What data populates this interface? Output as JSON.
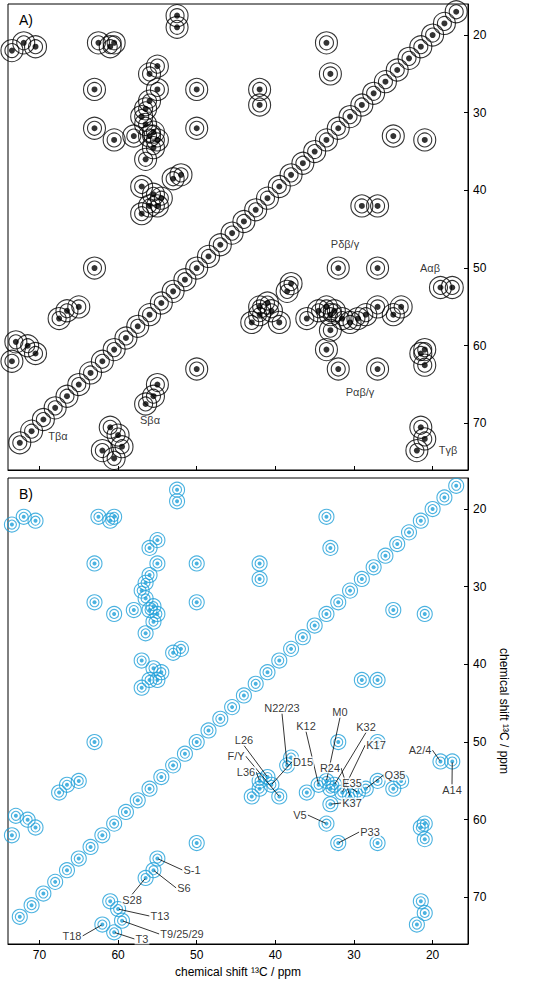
{
  "chart_data": [
    {
      "type": "scatter",
      "title": "A)",
      "xlim": [
        74,
        15.5
      ],
      "ylim": [
        76,
        16
      ],
      "xticks": [
        70,
        60,
        50,
        40,
        30,
        20
      ],
      "yticks": [
        20,
        30,
        40,
        50,
        60,
        70
      ],
      "tick_labels": "y",
      "color": "#000000",
      "values": [
        [
          60,
          71.5
        ],
        [
          71.5,
          60
        ],
        [
          59.5,
          73
        ],
        [
          73,
          59.5
        ],
        [
          62,
          73.5
        ],
        [
          73.5,
          62
        ],
        [
          60.5,
          74.5
        ],
        [
          61,
          70.5
        ],
        [
          70.5,
          61
        ],
        [
          21.5,
          70.5
        ],
        [
          70.5,
          21.5
        ],
        [
          21,
          72
        ],
        [
          72,
          21
        ],
        [
          22,
          73.5
        ],
        [
          73.5,
          22
        ],
        [
          21.5,
          61
        ],
        [
          61,
          21.5
        ],
        [
          21,
          62.5
        ],
        [
          62.5,
          21
        ],
        [
          55,
          65
        ],
        [
          65,
          55
        ],
        [
          55.5,
          66.5
        ],
        [
          66.5,
          55.5
        ],
        [
          56.5,
          67.5
        ],
        [
          67.5,
          56.5
        ],
        [
          19,
          52.5
        ],
        [
          52.5,
          19
        ],
        [
          17.5,
          52.5
        ],
        [
          52.5,
          17.5
        ],
        [
          33,
          56
        ],
        [
          56,
          33
        ],
        [
          32.5,
          55.5
        ],
        [
          55.5,
          32.5
        ],
        [
          34.5,
          55.5
        ],
        [
          55.5,
          34.5
        ],
        [
          31.5,
          56.5
        ],
        [
          56.5,
          31.5
        ],
        [
          33,
          58
        ],
        [
          58,
          33
        ],
        [
          25,
          56
        ],
        [
          56,
          25
        ],
        [
          42,
          56
        ],
        [
          56,
          42
        ],
        [
          25,
          33
        ],
        [
          33,
          25
        ],
        [
          42,
          29
        ],
        [
          29,
          42
        ],
        [
          32,
          63
        ],
        [
          63,
          32
        ],
        [
          27,
          63
        ],
        [
          63,
          27
        ],
        [
          50,
          63
        ],
        [
          63,
          50
        ],
        [
          32,
          50
        ],
        [
          50,
          32
        ],
        [
          27,
          50
        ],
        [
          50,
          27
        ],
        [
          33.5,
          60.5
        ],
        [
          60.5,
          33.5
        ],
        [
          21,
          60.5
        ],
        [
          60.5,
          21
        ],
        [
          21,
          33.5
        ],
        [
          33.5,
          21
        ],
        [
          42,
          55
        ],
        [
          55,
          42
        ],
        [
          41,
          54.5
        ],
        [
          54.5,
          41
        ],
        [
          27,
          55
        ],
        [
          55,
          27
        ],
        [
          24,
          55
        ],
        [
          55,
          24
        ],
        [
          27,
          42
        ],
        [
          42,
          27
        ],
        [
          38.5,
          53
        ],
        [
          53,
          38.5
        ],
        [
          38,
          52
        ],
        [
          52,
          38
        ],
        [
          40.5,
          55.5
        ],
        [
          55.5,
          40.5
        ],
        [
          29.5,
          56.5
        ],
        [
          56.5,
          29.5
        ],
        [
          36,
          56.5
        ],
        [
          56.5,
          36
        ],
        [
          28.5,
          56
        ],
        [
          56,
          28.5
        ],
        [
          30.5,
          57
        ],
        [
          57,
          30.5
        ],
        [
          43,
          57
        ],
        [
          57,
          43
        ],
        [
          33.5,
          55
        ],
        [
          55,
          33.5
        ],
        [
          39.5,
          57
        ],
        [
          57,
          39.5
        ],
        [
          17,
          17
        ],
        [
          18.5,
          18.5
        ],
        [
          20,
          20
        ],
        [
          21.5,
          21.5
        ],
        [
          23,
          23
        ],
        [
          24.5,
          24.5
        ],
        [
          26,
          26
        ],
        [
          27.5,
          27.5
        ],
        [
          29,
          29
        ],
        [
          30.5,
          30.5
        ],
        [
          32,
          32
        ],
        [
          33.5,
          33.5
        ],
        [
          35,
          35
        ],
        [
          36.5,
          36.5
        ],
        [
          38,
          38
        ],
        [
          39.5,
          39.5
        ],
        [
          41,
          41
        ],
        [
          42.5,
          42.5
        ],
        [
          44,
          44
        ],
        [
          45.5,
          45.5
        ],
        [
          47,
          47
        ],
        [
          48.5,
          48.5
        ],
        [
          50,
          50
        ],
        [
          51.5,
          51.5
        ],
        [
          53,
          53
        ],
        [
          54.5,
          54.5
        ],
        [
          56,
          56
        ],
        [
          57.5,
          57.5
        ],
        [
          59,
          59
        ],
        [
          60.5,
          60.5
        ],
        [
          62,
          62
        ],
        [
          63.5,
          63.5
        ],
        [
          65,
          65
        ],
        [
          66.5,
          66.5
        ],
        [
          68,
          68
        ],
        [
          69.5,
          69.5
        ],
        [
          71,
          71
        ],
        [
          72.5,
          72.5
        ]
      ],
      "annotations": [
        {
          "text": "Sβα",
          "x": 55.5,
          "y": 66.5
        },
        {
          "text": "Tβα",
          "x": 60,
          "y": 71.5
        },
        {
          "text": "Pδβ/γ",
          "x": 32,
          "y": 50
        },
        {
          "text": "Aαβ",
          "x": 19,
          "y": 52.5
        },
        {
          "text": "Pαβ/γ",
          "x": 32,
          "y": 63
        },
        {
          "text": "Tγβ",
          "x": 21.5,
          "y": 70.5
        }
      ]
    },
    {
      "type": "scatter",
      "title": "B)",
      "xlabel": "chemical shift ¹³C / ppm",
      "ylabel": "chemical shift ¹³C / ppm",
      "xlim": [
        74,
        15.5
      ],
      "ylim": [
        76,
        16
      ],
      "xticks": [
        70,
        60,
        50,
        40,
        30,
        20
      ],
      "yticks": [
        20,
        30,
        40,
        50,
        60,
        70
      ],
      "color": "#1e9fd8",
      "values": [
        [
          60,
          71.5
        ],
        [
          71.5,
          60
        ],
        [
          59.5,
          73
        ],
        [
          73,
          59.5
        ],
        [
          62,
          73.5
        ],
        [
          73.5,
          62
        ],
        [
          60.5,
          74.5
        ],
        [
          61,
          70.5
        ],
        [
          70.5,
          61
        ],
        [
          21.5,
          70.5
        ],
        [
          70.5,
          21.5
        ],
        [
          21,
          72
        ],
        [
          72,
          21
        ],
        [
          22,
          73.5
        ],
        [
          73.5,
          22
        ],
        [
          21.5,
          61
        ],
        [
          61,
          21.5
        ],
        [
          21,
          62.5
        ],
        [
          62.5,
          21
        ],
        [
          55,
          65
        ],
        [
          65,
          55
        ],
        [
          55.5,
          66.5
        ],
        [
          66.5,
          55.5
        ],
        [
          56.5,
          67.5
        ],
        [
          67.5,
          56.5
        ],
        [
          19,
          52.5
        ],
        [
          52.5,
          19
        ],
        [
          17.5,
          52.5
        ],
        [
          52.5,
          17.5
        ],
        [
          33,
          56
        ],
        [
          56,
          33
        ],
        [
          32.5,
          55.5
        ],
        [
          55.5,
          32.5
        ],
        [
          34.5,
          55.5
        ],
        [
          55.5,
          34.5
        ],
        [
          31.5,
          56.5
        ],
        [
          56.5,
          31.5
        ],
        [
          33,
          58
        ],
        [
          58,
          33
        ],
        [
          25,
          56
        ],
        [
          56,
          25
        ],
        [
          42,
          56
        ],
        [
          56,
          42
        ],
        [
          25,
          33
        ],
        [
          33,
          25
        ],
        [
          42,
          29
        ],
        [
          29,
          42
        ],
        [
          32,
          63
        ],
        [
          63,
          32
        ],
        [
          27,
          63
        ],
        [
          63,
          27
        ],
        [
          50,
          63
        ],
        [
          63,
          50
        ],
        [
          32,
          50
        ],
        [
          50,
          32
        ],
        [
          27,
          50
        ],
        [
          50,
          27
        ],
        [
          33.5,
          60.5
        ],
        [
          60.5,
          33.5
        ],
        [
          21,
          60.5
        ],
        [
          60.5,
          21
        ],
        [
          21,
          33.5
        ],
        [
          33.5,
          21
        ],
        [
          42,
          55
        ],
        [
          55,
          42
        ],
        [
          41,
          54.5
        ],
        [
          54.5,
          41
        ],
        [
          27,
          55
        ],
        [
          55,
          27
        ],
        [
          24,
          55
        ],
        [
          55,
          24
        ],
        [
          27,
          42
        ],
        [
          42,
          27
        ],
        [
          38.5,
          53
        ],
        [
          53,
          38.5
        ],
        [
          38,
          52
        ],
        [
          52,
          38
        ],
        [
          40.5,
          55.5
        ],
        [
          55.5,
          40.5
        ],
        [
          29.5,
          56.5
        ],
        [
          56.5,
          29.5
        ],
        [
          36,
          56.5
        ],
        [
          56.5,
          36
        ],
        [
          28.5,
          56
        ],
        [
          56,
          28.5
        ],
        [
          30.5,
          57
        ],
        [
          57,
          30.5
        ],
        [
          43,
          57
        ],
        [
          57,
          43
        ],
        [
          33.5,
          55
        ],
        [
          55,
          33.5
        ],
        [
          39.5,
          57
        ],
        [
          57,
          39.5
        ],
        [
          17,
          17
        ],
        [
          18.5,
          18.5
        ],
        [
          20,
          20
        ],
        [
          21.5,
          21.5
        ],
        [
          23,
          23
        ],
        [
          24.5,
          24.5
        ],
        [
          26,
          26
        ],
        [
          27.5,
          27.5
        ],
        [
          29,
          29
        ],
        [
          30.5,
          30.5
        ],
        [
          32,
          32
        ],
        [
          33.5,
          33.5
        ],
        [
          35,
          35
        ],
        [
          36.5,
          36.5
        ],
        [
          38,
          38
        ],
        [
          39.5,
          39.5
        ],
        [
          41,
          41
        ],
        [
          42.5,
          42.5
        ],
        [
          44,
          44
        ],
        [
          45.5,
          45.5
        ],
        [
          47,
          47
        ],
        [
          48.5,
          48.5
        ],
        [
          50,
          50
        ],
        [
          51.5,
          51.5
        ],
        [
          53,
          53
        ],
        [
          54.5,
          54.5
        ],
        [
          56,
          56
        ],
        [
          57.5,
          57.5
        ],
        [
          59,
          59
        ],
        [
          60.5,
          60.5
        ],
        [
          62,
          62
        ],
        [
          63.5,
          63.5
        ],
        [
          65,
          65
        ],
        [
          66.5,
          66.5
        ],
        [
          68,
          68
        ],
        [
          69.5,
          69.5
        ],
        [
          71,
          71
        ],
        [
          72.5,
          72.5
        ]
      ],
      "annotations": [
        {
          "text": "N22/23",
          "x": 38.5,
          "y": 53
        },
        {
          "text": "K12",
          "x": 34.5,
          "y": 55.5
        },
        {
          "text": "M0",
          "x": 33.5,
          "y": 55
        },
        {
          "text": "K32",
          "x": 32.5,
          "y": 55.5
        },
        {
          "text": "K17",
          "x": 31.5,
          "y": 56.5
        },
        {
          "text": "L26",
          "x": 41,
          "y": 54.5
        },
        {
          "text": "F/Y",
          "x": 39.5,
          "y": 57
        },
        {
          "text": "L36",
          "x": 42,
          "y": 55
        },
        {
          "text": "D15",
          "x": 40.5,
          "y": 55.5
        },
        {
          "text": "R24",
          "x": 30.5,
          "y": 57
        },
        {
          "text": "E35",
          "x": 29.5,
          "y": 56.5
        },
        {
          "text": "Q35",
          "x": 28.5,
          "y": 56
        },
        {
          "text": "A2/4",
          "x": 19,
          "y": 52.5
        },
        {
          "text": "A14",
          "x": 17.5,
          "y": 52.5
        },
        {
          "text": "K37",
          "x": 33,
          "y": 58
        },
        {
          "text": "V5",
          "x": 33.5,
          "y": 60.5
        },
        {
          "text": "P33",
          "x": 32,
          "y": 63
        },
        {
          "text": "S-1",
          "x": 55,
          "y": 65
        },
        {
          "text": "S6",
          "x": 55.5,
          "y": 66.5
        },
        {
          "text": "S28",
          "x": 56.5,
          "y": 67.5
        },
        {
          "text": "T13",
          "x": 60,
          "y": 71.5
        },
        {
          "text": "T9/25/29",
          "x": 59.5,
          "y": 73
        },
        {
          "text": "T18",
          "x": 62,
          "y": 73.5
        },
        {
          "text": "T3",
          "x": 60.5,
          "y": 74.5
        }
      ]
    }
  ]
}
